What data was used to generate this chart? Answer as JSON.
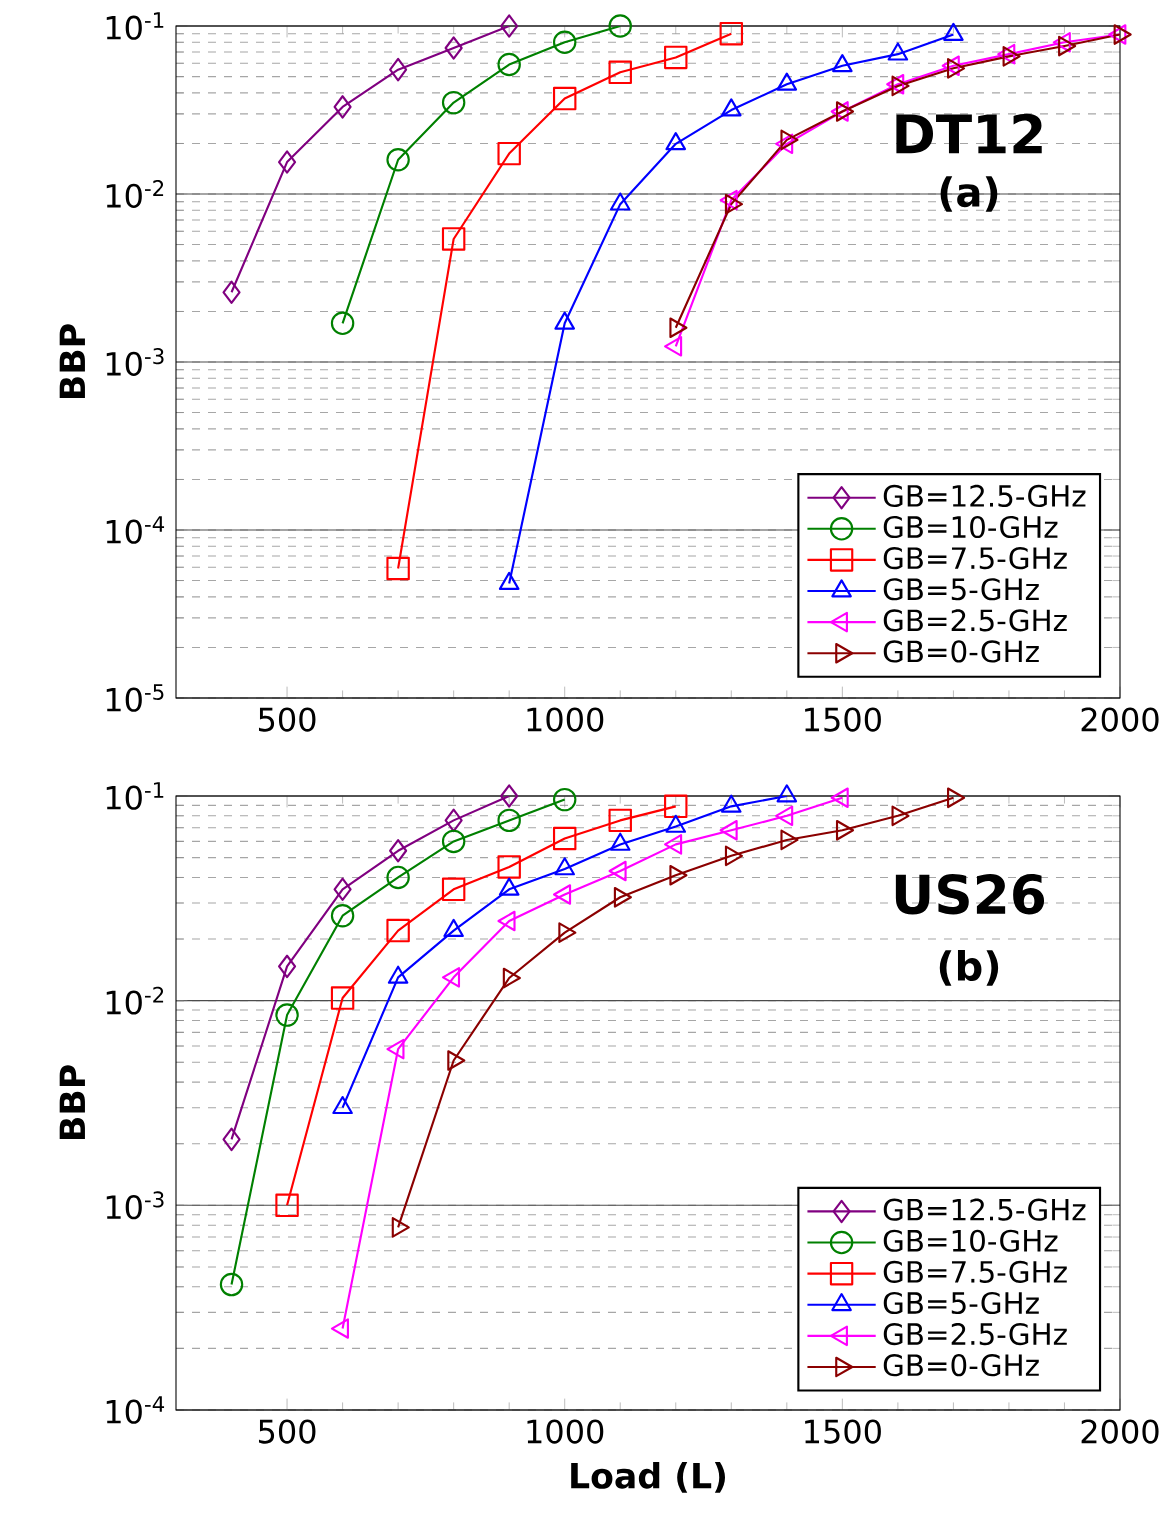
{
  "chart_data": [
    {
      "type": "line",
      "ylabel": "BBP",
      "annotations": [
        "DT12",
        "(a)"
      ],
      "log": "y",
      "grid": "y",
      "legend": "bottom right",
      "xlim": [
        300,
        2000
      ],
      "xticks": [
        500,
        1000,
        1500,
        2000
      ],
      "ylim": [
        1e-05,
        0.1
      ],
      "yticks": [
        {
          "value": 1e-05,
          "label": "10$^{-5}$"
        },
        {
          "value": 0.0001,
          "label": "10$^{-4}$"
        },
        {
          "value": 0.001,
          "label": "10$^{-3}$"
        },
        {
          "value": 0.01,
          "label": "10$^{-2}$"
        },
        {
          "value": 0.1,
          "label": "10$^{-1}$"
        }
      ],
      "series": [
        {
          "name": "GB=12.5-GHz",
          "color": "#800080",
          "marker": "diamond",
          "x": [
            400,
            500,
            600,
            700,
            800,
            900
          ],
          "values": [
            0.0026,
            0.0155,
            0.033,
            0.055,
            0.074,
            0.1
          ]
        },
        {
          "name": "GB=10-GHz",
          "color": "#008000",
          "marker": "circle",
          "x": [
            600,
            700,
            800,
            900,
            1000,
            1100
          ],
          "values": [
            0.0017,
            0.016,
            0.035,
            0.059,
            0.08,
            0.1
          ]
        },
        {
          "name": "GB=7.5-GHz",
          "color": "#ff0000",
          "marker": "square",
          "x": [
            700,
            800,
            900,
            1000,
            1100,
            1200,
            1300
          ],
          "values": [
            5.9e-05,
            0.0054,
            0.0174,
            0.037,
            0.053,
            0.065,
            0.09
          ]
        },
        {
          "name": "GB=5-GHz",
          "color": "#0000ff",
          "marker": "triangle",
          "x": [
            900,
            1000,
            1100,
            1200,
            1300,
            1400,
            1500,
            1600,
            1700
          ],
          "values": [
            4.8e-05,
            0.0017,
            0.0087,
            0.0199,
            0.0316,
            0.045,
            0.058,
            0.068,
            0.089
          ]
        },
        {
          "name": "GB=2.5-GHz",
          "color": "#ff00ff",
          "marker": "triangle-left",
          "x": [
            1200,
            1300,
            1400,
            1500,
            1600,
            1700,
            1800,
            1900,
            2000
          ],
          "values": [
            0.00124,
            0.0092,
            0.0199,
            0.031,
            0.045,
            0.058,
            0.068,
            0.08,
            0.089
          ]
        },
        {
          "name": "GB=0-GHz",
          "color": "#8b0000",
          "marker": "triangle-right",
          "x": [
            1200,
            1300,
            1400,
            1500,
            1600,
            1700,
            1800,
            1900,
            2000
          ],
          "values": [
            0.0016,
            0.0087,
            0.021,
            0.031,
            0.044,
            0.056,
            0.066,
            0.076,
            0.089
          ]
        }
      ]
    },
    {
      "type": "line",
      "xlabel": "Load (L)",
      "ylabel": "BBP",
      "annotations": [
        "US26",
        "(b)"
      ],
      "log": "y",
      "grid": "y",
      "legend": "bottom right",
      "xlim": [
        300,
        2000
      ],
      "xticks": [
        500,
        1000,
        1500,
        2000
      ],
      "ylim": [
        0.0001,
        0.1
      ],
      "yticks": [
        {
          "value": 0.0001,
          "label": "10$^{-4}$"
        },
        {
          "value": 0.001,
          "label": "10$^{-3}$"
        },
        {
          "value": 0.01,
          "label": "10$^{-2}$"
        },
        {
          "value": 0.1,
          "label": "10$^{-1}$"
        }
      ],
      "series": [
        {
          "name": "GB=12.5-GHz",
          "color": "#800080",
          "marker": "diamond",
          "x": [
            400,
            500,
            600,
            700,
            800,
            900
          ],
          "values": [
            0.0021,
            0.0147,
            0.035,
            0.054,
            0.076,
            0.1
          ]
        },
        {
          "name": "GB=10-GHz",
          "color": "#008000",
          "marker": "circle",
          "x": [
            400,
            500,
            600,
            700,
            800,
            900,
            1000
          ],
          "values": [
            0.00041,
            0.0085,
            0.026,
            0.04,
            0.06,
            0.076,
            0.096
          ]
        },
        {
          "name": "GB=7.5-GHz",
          "color": "#ff0000",
          "marker": "square",
          "x": [
            500,
            600,
            700,
            800,
            900,
            1000,
            1100,
            1200
          ],
          "values": [
            0.001,
            0.0103,
            0.022,
            0.035,
            0.045,
            0.062,
            0.076,
            0.089
          ]
        },
        {
          "name": "GB=5-GHz",
          "color": "#0000ff",
          "marker": "triangle",
          "x": [
            600,
            700,
            800,
            900,
            1000,
            1100,
            1200,
            1300,
            1400
          ],
          "values": [
            0.003,
            0.013,
            0.022,
            0.035,
            0.044,
            0.058,
            0.071,
            0.089,
            0.1
          ]
        },
        {
          "name": "GB=2.5-GHz",
          "color": "#ff00ff",
          "marker": "triangle-left",
          "x": [
            600,
            700,
            800,
            900,
            1000,
            1100,
            1200,
            1300,
            1400,
            1500
          ],
          "values": [
            0.00025,
            0.0058,
            0.013,
            0.0245,
            0.033,
            0.043,
            0.058,
            0.068,
            0.08,
            0.098
          ]
        },
        {
          "name": "GB=0-GHz",
          "color": "#8b0000",
          "marker": "triangle-right",
          "x": [
            700,
            800,
            900,
            1000,
            1100,
            1200,
            1300,
            1400,
            1500,
            1600,
            1700
          ],
          "values": [
            0.00078,
            0.0051,
            0.0129,
            0.0215,
            0.032,
            0.041,
            0.051,
            0.061,
            0.068,
            0.08,
            0.098
          ]
        }
      ]
    }
  ]
}
